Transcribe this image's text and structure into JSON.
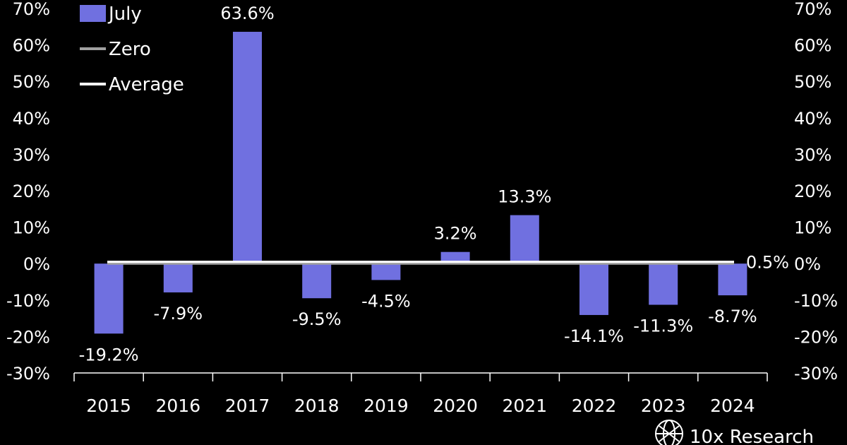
{
  "chart_data": {
    "type": "bar",
    "categories": [
      "2015",
      "2016",
      "2017",
      "2018",
      "2019",
      "2020",
      "2021",
      "2022",
      "2023",
      "2024"
    ],
    "series": [
      {
        "name": "July",
        "values": [
          -19.2,
          -7.9,
          63.6,
          -9.5,
          -4.5,
          3.2,
          13.3,
          -14.1,
          -11.3,
          -8.7
        ],
        "color": "#7070e0"
      }
    ],
    "data_labels": [
      "-19.2%",
      "-7.9%",
      "63.6%",
      "-9.5%",
      "-4.5%",
      "3.2%",
      "13.3%",
      "-14.1%",
      "-11.3%",
      "-8.7%"
    ],
    "reference_lines": [
      {
        "name": "Zero",
        "value": 0,
        "color": "#a0a0a0"
      },
      {
        "name": "Average",
        "value": 0.5,
        "label": "0.5%",
        "color": "#ffffff"
      }
    ],
    "y_ticks": [
      "70%",
      "60%",
      "50%",
      "40%",
      "30%",
      "20%",
      "10%",
      "0%",
      "-10%",
      "-20%",
      "-30%"
    ],
    "ylim": [
      -30,
      70
    ],
    "y_axis_sides": "left-and-right",
    "grid": false,
    "legend_placement": "top-left",
    "background": "#000000"
  },
  "legend": {
    "items": [
      {
        "label": "July",
        "kind": "swatch",
        "color": "#7070e0"
      },
      {
        "label": "Zero",
        "kind": "line",
        "color": "#a0a0a0"
      },
      {
        "label": "Average",
        "kind": "line",
        "color": "#ffffff"
      }
    ]
  },
  "branding": {
    "label": "10x Research",
    "icon": "globe-logo-icon"
  }
}
